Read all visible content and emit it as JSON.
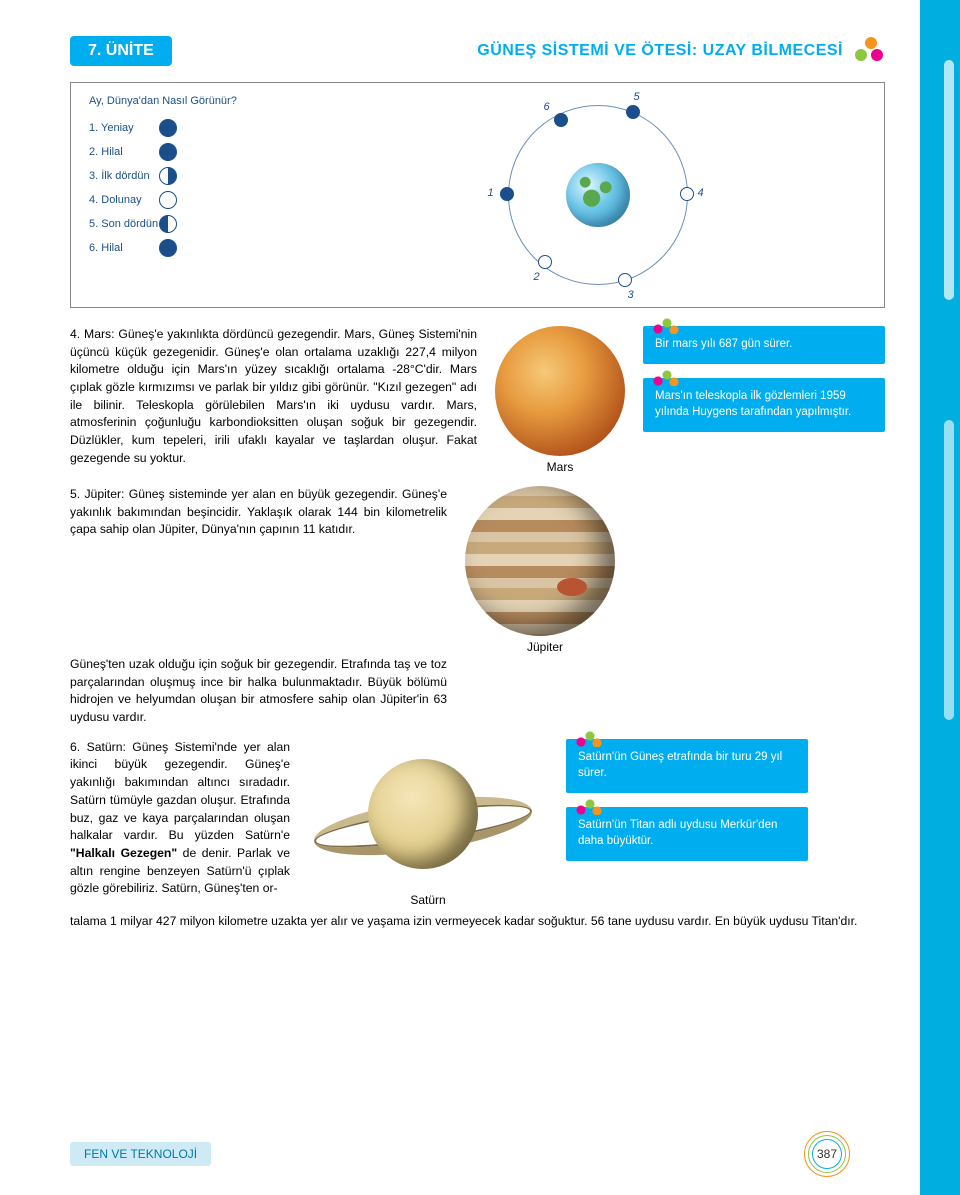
{
  "header": {
    "unit": "7. ÜNİTE",
    "chapter": "GÜNEŞ SİSTEMİ VE ÖTESİ: UZAY BİLMECESİ"
  },
  "moon": {
    "question": "Ay, Dünya'dan Nasıl Görünür?",
    "phases": [
      {
        "n": "1.",
        "label": "Yeniay"
      },
      {
        "n": "2.",
        "label": "Hilal"
      },
      {
        "n": "3.",
        "label": "İlk dördün"
      },
      {
        "n": "4.",
        "label": "Dolunay"
      },
      {
        "n": "5.",
        "label": "Son dördün"
      },
      {
        "n": "6.",
        "label": "Hilal"
      }
    ],
    "orbit_nums": {
      "1": "1",
      "2": "2",
      "3": "3",
      "4": "4",
      "5": "5",
      "6": "6"
    }
  },
  "mars": {
    "para": "4. Mars: Güneş'e yakınlıkta dördüncü gezegendir. Mars, Güneş Sistemi'nin üçüncü küçük gezegenidir. Güneş'e olan ortalama uzaklığı 227,4 milyon kilometre olduğu için Mars'ın yüzey sıcaklığı ortalama -28°C'dir. Mars çıplak gözle kırmızımsı ve parlak bir yıldız gibi görünür. \"Kızıl gezegen\" adı ile bilinir. Teleskopla görülebilen Mars'ın iki uydusu vardır. Mars, atmosferinin çoğunluğu karbondioksitten oluşan soğuk bir gezegendir. Düzlükler, kum tepeleri, irili ufaklı kayalar ve taşlardan oluşur. Fakat gezegende su yoktur.",
    "caption": "Mars",
    "info1": "Bir mars yılı 687 gün sürer.",
    "info2": "Mars'ın teleskopla ilk gözlemleri 1959 yılında Huygens tarafından yapılmıştır."
  },
  "jupiter": {
    "para1": "5. Jüpiter: Güneş sisteminde yer alan en büyük gezegendir. Güneş'e yakınlık bakımından beşincidir. Yaklaşık olarak 144 bin kilometrelik çapa sahip olan Jüpiter, Dünya'nın çapının 11 katıdır.",
    "para2": "Güneş'ten uzak olduğu için soğuk bir gezegendir. Etrafında taş ve toz parçalarından oluşmuş ince bir halka bulunmaktadır. Büyük bölümü hidrojen ve helyumdan oluşan bir atmosfere sahip olan Jüpiter'in 63 uydusu vardır.",
    "caption": "Jüpiter"
  },
  "saturn": {
    "para_left": "6. Satürn: Güneş Sistemi'nde yer alan ikinci büyük gezegendir. Güneş'e yakınlığı bakımından altıncı sıradadır. Satürn tümüyle gazdan oluşur. Etrafında buz, gaz ve kaya parçalarından oluşan halkalar vardır. Bu yüzden Satürn'e ",
    "ringed": "\"Halkalı Gezegen\"",
    "para_left2": " de denir. Parlak ve altın rengine benzeyen Satürn'ü çıplak gözle görebiliriz. Satürn, Güneş'ten or-",
    "para_tail": "talama 1 milyar 427 milyon kilometre uzakta yer alır ve yaşama izin vermeyecek kadar soğuktur. 56 tane uydusu vardır. En büyük uydusu Titan'dır.",
    "caption": "Satürn",
    "info1": "Satürn'ün Güneş etrafında bir turu 29 yıl sürer.",
    "info2": "Satürn'ün Titan adlı uydusu Merkür'den daha büyüktür."
  },
  "footer": {
    "subject": "FEN VE TEKNOLOJİ",
    "page": "387"
  },
  "colors": {
    "brand_blue": "#00aeef",
    "bg_blue": "#00afe0"
  }
}
